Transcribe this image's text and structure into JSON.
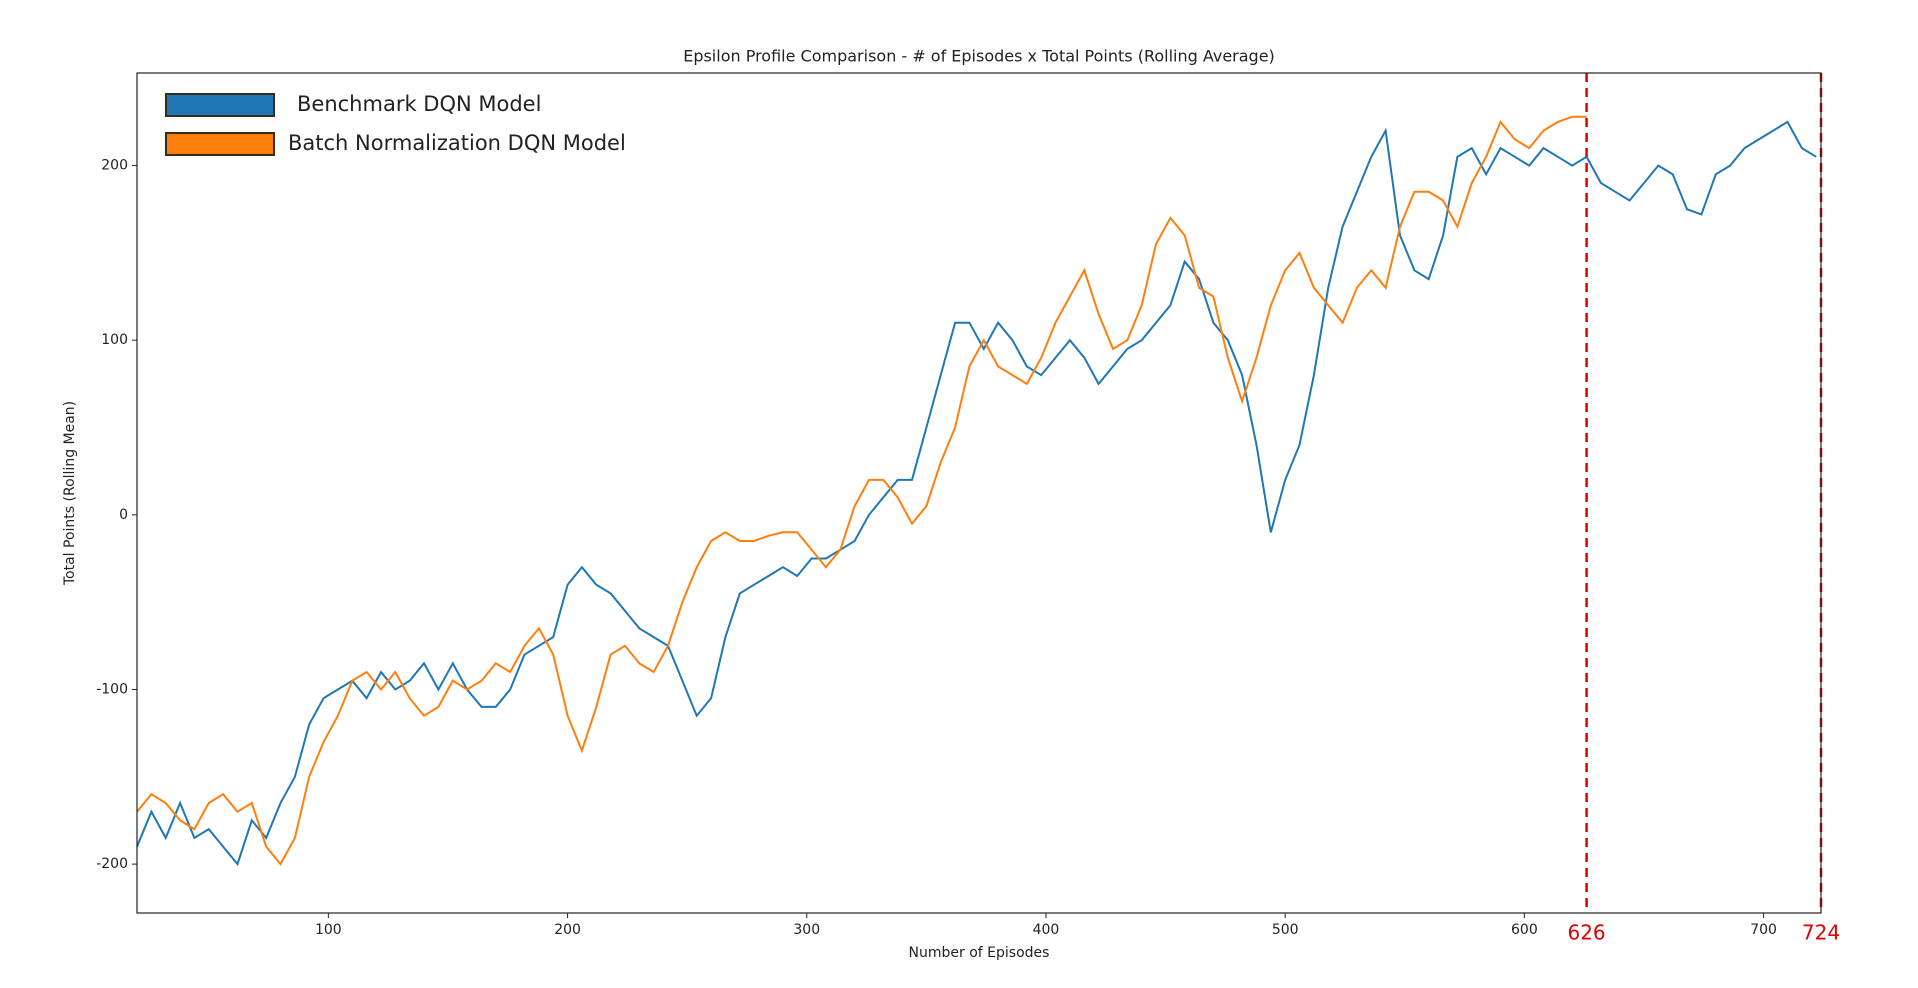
{
  "chart_data": {
    "type": "line",
    "title": "Epsilon Profile Comparison - # of Episodes x Total Points (Rolling Average)",
    "xlabel": "Number of Episodes",
    "ylabel": "Total Points (Rolling Mean)",
    "x": [
      20,
      26,
      32,
      38,
      44,
      50,
      56,
      62,
      68,
      74,
      80,
      86,
      92,
      98,
      104,
      110,
      116,
      122,
      128,
      134,
      140,
      146,
      152,
      158,
      164,
      170,
      176,
      182,
      188,
      194,
      200,
      206,
      212,
      218,
      224,
      230,
      236,
      242,
      248,
      254,
      260,
      266,
      272,
      278,
      284,
      290,
      296,
      302,
      308,
      314,
      320,
      326,
      332,
      338,
      344,
      350,
      356,
      362,
      368,
      374,
      380,
      386,
      392,
      398,
      404,
      410,
      416,
      422,
      428,
      434,
      440,
      446,
      452,
      458,
      464,
      470,
      476,
      482,
      488,
      494,
      500,
      506,
      512,
      518,
      524,
      530,
      536,
      542,
      548,
      554,
      560,
      566,
      572,
      578,
      584,
      590,
      596,
      602,
      608,
      614,
      620,
      626,
      632,
      638,
      644,
      650,
      656,
      662,
      668,
      674,
      680,
      686,
      692,
      698,
      704,
      710,
      716,
      722
    ],
    "series": [
      {
        "name": "Benchmark DQN Model",
        "color": "#1f77b4",
        "values": [
          -190,
          -170,
          -185,
          -165,
          -185,
          -180,
          -190,
          -200,
          -175,
          -185,
          -165,
          -150,
          -120,
          -105,
          -100,
          -95,
          -105,
          -90,
          -100,
          -95,
          -85,
          -100,
          -85,
          -100,
          -110,
          -110,
          -100,
          -80,
          -75,
          -70,
          -40,
          -30,
          -40,
          -45,
          -55,
          -65,
          -70,
          -75,
          -95,
          -115,
          -105,
          -70,
          -45,
          -40,
          -35,
          -30,
          -35,
          -25,
          -25,
          -20,
          -15,
          0,
          10,
          20,
          20,
          50,
          80,
          110,
          110,
          95,
          110,
          100,
          85,
          80,
          90,
          100,
          90,
          75,
          85,
          95,
          100,
          110,
          120,
          145,
          135,
          110,
          100,
          80,
          40,
          -10,
          20,
          40,
          80,
          130,
          165,
          185,
          205,
          220,
          160,
          140,
          135,
          160,
          205,
          210,
          195,
          210,
          205,
          200,
          210,
          205,
          200,
          205,
          190,
          185,
          180,
          190,
          200,
          195,
          175,
          172,
          195,
          200,
          210,
          215,
          220,
          225,
          210,
          205
        ]
      },
      {
        "name": "Batch Normalization DQN Model",
        "color": "#ff7f0e",
        "values": [
          -170,
          -160,
          -165,
          -175,
          -180,
          -165,
          -160,
          -170,
          -165,
          -190,
          -200,
          -185,
          -150,
          -130,
          -115,
          -95,
          -90,
          -100,
          -90,
          -105,
          -115,
          -110,
          -95,
          -100,
          -95,
          -85,
          -90,
          -75,
          -65,
          -80,
          -115,
          -135,
          -110,
          -80,
          -75,
          -85,
          -90,
          -75,
          -50,
          -30,
          -15,
          -10,
          -15,
          -15,
          -12,
          -10,
          -10,
          -20,
          -30,
          -20,
          5,
          20,
          20,
          10,
          -5,
          5,
          30,
          50,
          85,
          100,
          85,
          80,
          75,
          90,
          110,
          125,
          140,
          115,
          95,
          100,
          120,
          155,
          170,
          160,
          130,
          125,
          90,
          65,
          90,
          120,
          140,
          150,
          130,
          120,
          110,
          130,
          140,
          130,
          165,
          185,
          185,
          180,
          165,
          190,
          205,
          225,
          215,
          210,
          220,
          225,
          228,
          228,
          null,
          null,
          null,
          null,
          null,
          null,
          null,
          null,
          null,
          null,
          null,
          null,
          null,
          null,
          null,
          null
        ]
      }
    ],
    "xlim": [
      20,
      724
    ],
    "ylim": [
      -228,
      253
    ],
    "xticks": [
      100,
      200,
      300,
      400,
      500,
      600,
      700
    ],
    "yticks": [
      -200,
      -100,
      0,
      100,
      200
    ],
    "vlines": [
      626,
      724
    ],
    "vline_color": "#e00000"
  }
}
